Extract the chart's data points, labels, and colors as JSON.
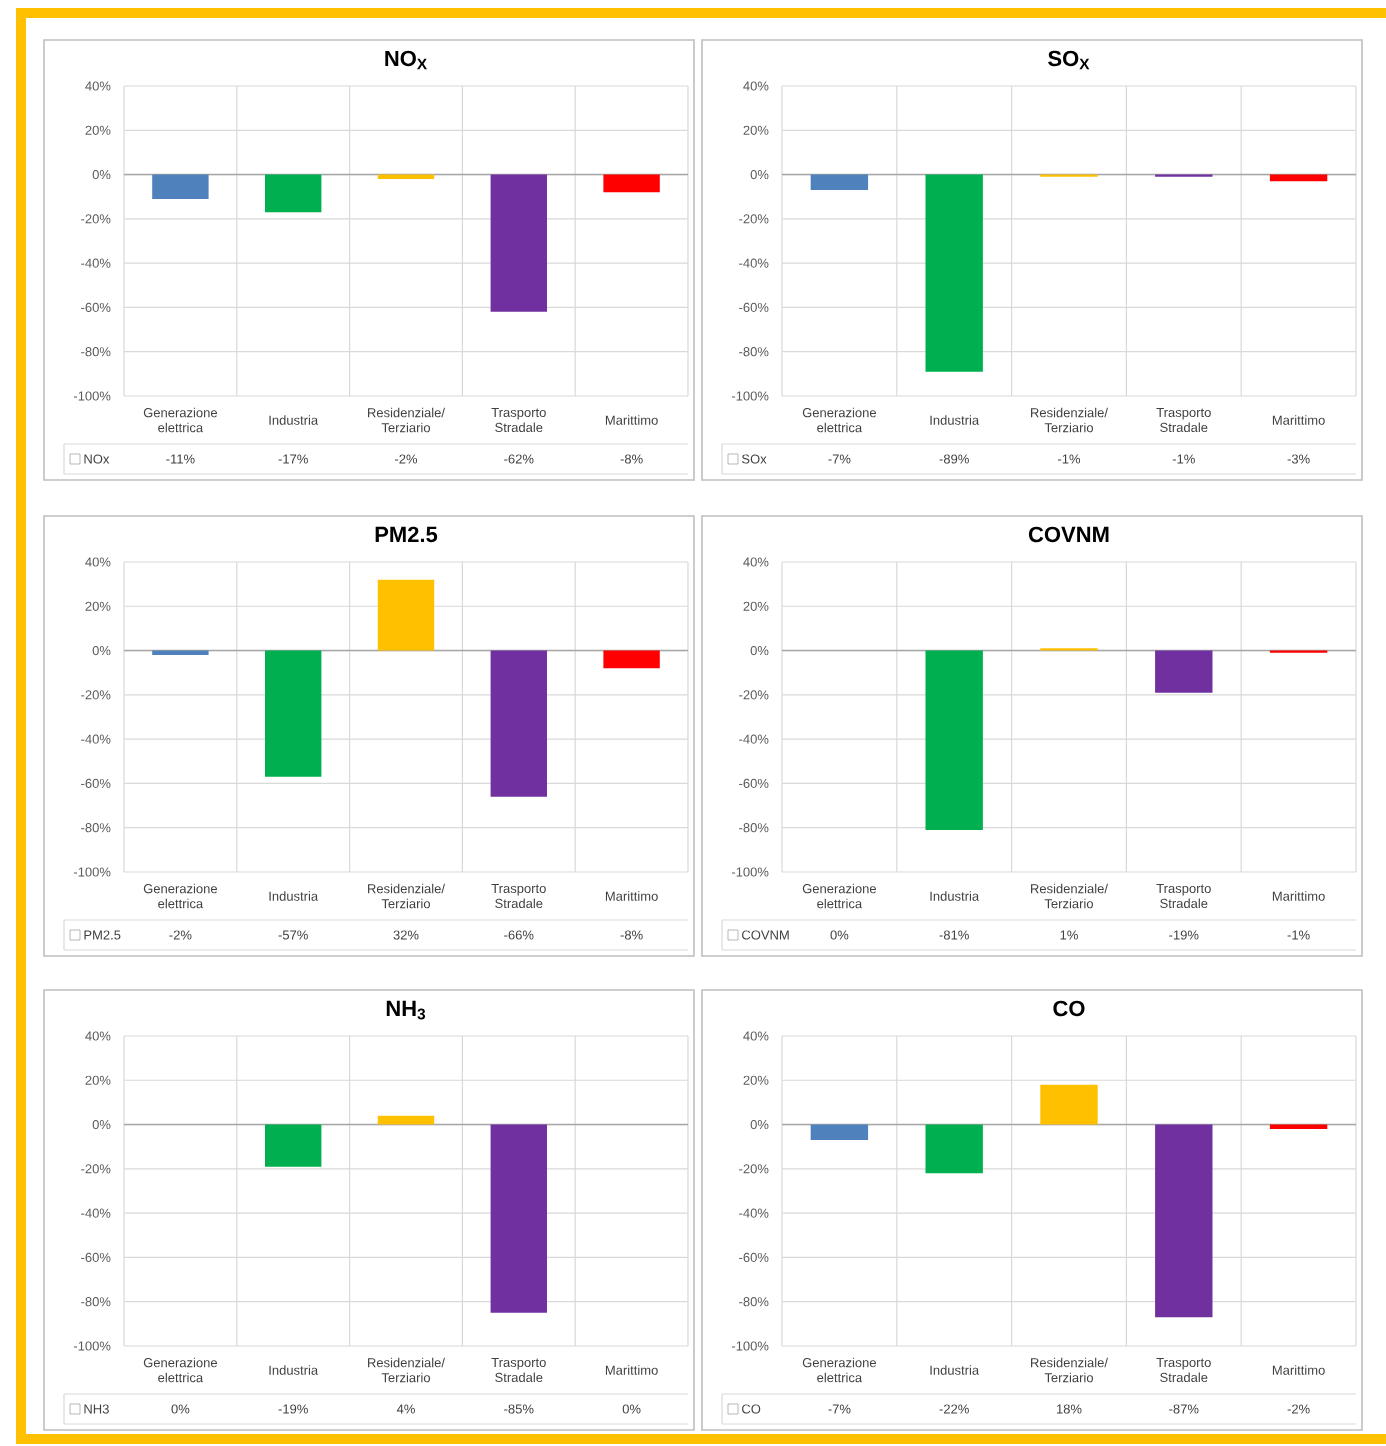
{
  "chart_data": [
    {
      "type": "bar",
      "title": "NO$_{X}$",
      "categories": [
        "Generazione elettrica",
        "Industria",
        "Residenziale/ Terziario",
        "Trasporto Stradale",
        "Marittimo"
      ],
      "series": [
        {
          "name": "NOx",
          "colors": [
            "#4f81bd",
            "#00b050",
            "#ffc000",
            "#7030a0",
            "#ff0000"
          ],
          "values": [
            -11,
            -17,
            -2,
            -62,
            -8
          ],
          "value_labels": [
            "-11%",
            "-17%",
            "-2%",
            "-62%",
            "-8%"
          ]
        }
      ],
      "ylim": [
        -100,
        40
      ],
      "yticks": [
        {
          "value": 40,
          "label": "40%"
        },
        {
          "value": 20,
          "label": "20%"
        },
        {
          "value": 0,
          "label": "0%"
        },
        {
          "value": -20,
          "label": "-20%"
        },
        {
          "value": -40,
          "label": "-40%"
        },
        {
          "value": -60,
          "label": "-60%"
        },
        {
          "value": -80,
          "label": "-80%"
        },
        {
          "value": -100,
          "label": "-100%"
        }
      ],
      "grid": true,
      "legend": "bottom"
    },
    {
      "type": "bar",
      "title": "SO$_{X}$",
      "categories": [
        "Generazione elettrica",
        "Industria",
        "Residenziale/ Terziario",
        "Trasporto Stradale",
        "Marittimo"
      ],
      "series": [
        {
          "name": "SOx",
          "colors": [
            "#4f81bd",
            "#00b050",
            "#ffc000",
            "#7030a0",
            "#ff0000"
          ],
          "values": [
            -7,
            -89,
            -1,
            -1,
            -3
          ],
          "value_labels": [
            "-7%",
            "-89%",
            "-1%",
            "-1%",
            "-3%"
          ]
        }
      ],
      "ylim": [
        -100,
        40
      ],
      "yticks": [
        {
          "value": 40,
          "label": "40%"
        },
        {
          "value": 20,
          "label": "20%"
        },
        {
          "value": 0,
          "label": "0%"
        },
        {
          "value": -20,
          "label": "-20%"
        },
        {
          "value": -40,
          "label": "-40%"
        },
        {
          "value": -60,
          "label": "-60%"
        },
        {
          "value": -80,
          "label": "-80%"
        },
        {
          "value": -100,
          "label": "-100%"
        }
      ],
      "grid": true,
      "legend": "bottom"
    },
    {
      "type": "bar",
      "title": "PM2.5",
      "categories": [
        "Generazione elettrica",
        "Industria",
        "Residenziale/ Terziario",
        "Trasporto Stradale",
        "Marittimo"
      ],
      "series": [
        {
          "name": "PM2.5",
          "colors": [
            "#4f81bd",
            "#00b050",
            "#ffc000",
            "#7030a0",
            "#ff0000"
          ],
          "values": [
            -2,
            -57,
            32,
            -66,
            -8
          ],
          "value_labels": [
            "-2%",
            "-57%",
            "32%",
            "-66%",
            "-8%"
          ]
        }
      ],
      "ylim": [
        -100,
        40
      ],
      "yticks": [
        {
          "value": 40,
          "label": "40%"
        },
        {
          "value": 20,
          "label": "20%"
        },
        {
          "value": 0,
          "label": "0%"
        },
        {
          "value": -20,
          "label": "-20%"
        },
        {
          "value": -40,
          "label": "-40%"
        },
        {
          "value": -60,
          "label": "-60%"
        },
        {
          "value": -80,
          "label": "-80%"
        },
        {
          "value": -100,
          "label": "-100%"
        }
      ],
      "grid": true,
      "legend": "bottom"
    },
    {
      "type": "bar",
      "title": "COVNM",
      "categories": [
        "Generazione elettrica",
        "Industria",
        "Residenziale/ Terziario",
        "Trasporto Stradale",
        "Marittimo"
      ],
      "series": [
        {
          "name": "COVNM",
          "colors": [
            "#4f81bd",
            "#00b050",
            "#ffc000",
            "#7030a0",
            "#ff0000"
          ],
          "values": [
            0,
            -81,
            1,
            -19,
            -1
          ],
          "value_labels": [
            "0%",
            "-81%",
            "1%",
            "-19%",
            "-1%"
          ]
        }
      ],
      "ylim": [
        -100,
        40
      ],
      "yticks": [
        {
          "value": 40,
          "label": "40%"
        },
        {
          "value": 20,
          "label": "20%"
        },
        {
          "value": 0,
          "label": "0%"
        },
        {
          "value": -20,
          "label": "-20%"
        },
        {
          "value": -40,
          "label": "-40%"
        },
        {
          "value": -60,
          "label": "-60%"
        },
        {
          "value": -80,
          "label": "-80%"
        },
        {
          "value": -100,
          "label": "-100%"
        }
      ],
      "grid": true,
      "legend": "bottom"
    },
    {
      "type": "bar",
      "title": "NH$_{3}$",
      "categories": [
        "Generazione elettrica",
        "Industria",
        "Residenziale/ Terziario",
        "Trasporto Stradale",
        "Marittimo"
      ],
      "series": [
        {
          "name": "NH3",
          "colors": [
            "#4f81bd",
            "#00b050",
            "#ffc000",
            "#7030a0",
            "#ff0000"
          ],
          "values": [
            0,
            -19,
            4,
            -85,
            0
          ],
          "value_labels": [
            "0%",
            "-19%",
            "4%",
            "-85%",
            "0%"
          ]
        }
      ],
      "ylim": [
        -100,
        40
      ],
      "yticks": [
        {
          "value": 40,
          "label": "40%"
        },
        {
          "value": 20,
          "label": "20%"
        },
        {
          "value": 0,
          "label": "0%"
        },
        {
          "value": -20,
          "label": "-20%"
        },
        {
          "value": -40,
          "label": "-40%"
        },
        {
          "value": -60,
          "label": "-60%"
        },
        {
          "value": -80,
          "label": "-80%"
        },
        {
          "value": -100,
          "label": "-100%"
        }
      ],
      "grid": true,
      "legend": "bottom"
    },
    {
      "type": "bar",
      "title": "CO",
      "categories": [
        "Generazione elettrica",
        "Industria",
        "Residenziale/ Terziario",
        "Trasporto Stradale",
        "Marittimo"
      ],
      "series": [
        {
          "name": "CO",
          "colors": [
            "#4f81bd",
            "#00b050",
            "#ffc000",
            "#7030a0",
            "#ff0000"
          ],
          "values": [
            -7,
            -22,
            18,
            -87,
            -2
          ],
          "value_labels": [
            "-7%",
            "-22%",
            "18%",
            "-87%",
            "-2%"
          ]
        }
      ],
      "ylim": [
        -100,
        40
      ],
      "yticks": [
        {
          "value": 40,
          "label": "40%"
        },
        {
          "value": 20,
          "label": "20%"
        },
        {
          "value": 0,
          "label": "0%"
        },
        {
          "value": -20,
          "label": "-20%"
        },
        {
          "value": -40,
          "label": "-40%"
        },
        {
          "value": -60,
          "label": "-60%"
        },
        {
          "value": -80,
          "label": "-80%"
        },
        {
          "value": -100,
          "label": "-100%"
        }
      ],
      "grid": true,
      "legend": "bottom"
    }
  ]
}
